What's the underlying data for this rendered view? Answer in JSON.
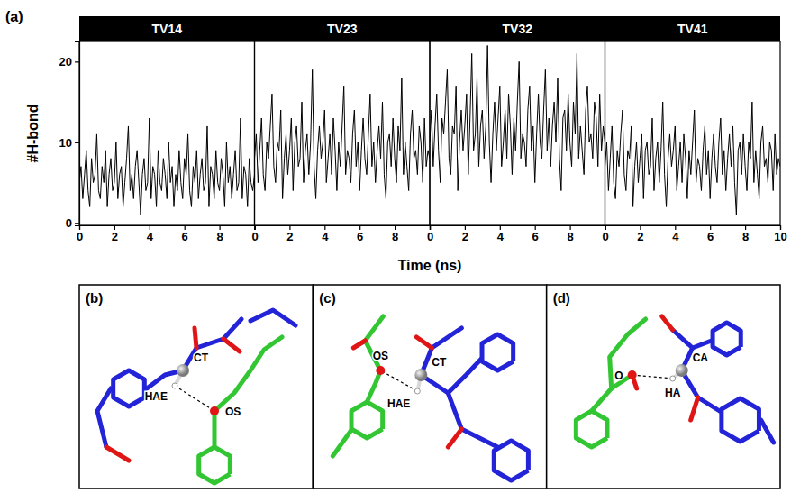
{
  "chart_data": {
    "type": "line",
    "panel_label": "(a)",
    "x_label": "Time (ns)",
    "y_label": "#H-bond",
    "xlim": [
      0,
      10
    ],
    "xticks": [
      0,
      2,
      4,
      6,
      8,
      10
    ],
    "ylim": [
      -0.3,
      22.5
    ],
    "yticks": [
      0,
      10,
      20
    ],
    "x": [
      0,
      0.1,
      0.2,
      0.3,
      0.4,
      0.5,
      0.6,
      0.7,
      0.8,
      0.9,
      1,
      1.1,
      1.2,
      1.3,
      1.4,
      1.5,
      1.6,
      1.7,
      1.8,
      1.9,
      2,
      2.1,
      2.2,
      2.3,
      2.4,
      2.5,
      2.6,
      2.7,
      2.8,
      2.9,
      3,
      3.1,
      3.2,
      3.3,
      3.4,
      3.5,
      3.6,
      3.7,
      3.8,
      3.9,
      4,
      4.1,
      4.2,
      4.3,
      4.4,
      4.5,
      4.6,
      4.7,
      4.8,
      4.9,
      5,
      5.1,
      5.2,
      5.3,
      5.4,
      5.5,
      5.6,
      5.7,
      5.8,
      5.9,
      6,
      6.1,
      6.2,
      6.3,
      6.4,
      6.5,
      6.6,
      6.7,
      6.8,
      6.9,
      7,
      7.1,
      7.2,
      7.3,
      7.4,
      7.5,
      7.6,
      7.7,
      7.8,
      7.9,
      8,
      8.1,
      8.2,
      8.3,
      8.4,
      8.5,
      8.6,
      8.7,
      8.8,
      8.9,
      9,
      9.1,
      9.2,
      9.3,
      9.4,
      9.5,
      9.6,
      9.7,
      9.8,
      9.9,
      10
    ],
    "series": [
      {
        "name": "TV14",
        "color": "#000000",
        "values": [
          5,
          7,
          3,
          6,
          9,
          4,
          2,
          8,
          5,
          6,
          11,
          4,
          3,
          7,
          5,
          9,
          2,
          6,
          8,
          4,
          5,
          10,
          3,
          6,
          7,
          2,
          5,
          8,
          12,
          4,
          6,
          3,
          7,
          9,
          5,
          1,
          6,
          8,
          4,
          5,
          13,
          3,
          7,
          6,
          2,
          9,
          5,
          4,
          8,
          6,
          3,
          10,
          5,
          7,
          2,
          6,
          4,
          9,
          5,
          3,
          8,
          6,
          11,
          4,
          2,
          7,
          5,
          9,
          3,
          6,
          8,
          4,
          5,
          12,
          2,
          7,
          6,
          3,
          9,
          5,
          4,
          8,
          6,
          2,
          10,
          5,
          7,
          3,
          6,
          9,
          4,
          5,
          13,
          3,
          7,
          6,
          2,
          8,
          5,
          4,
          6
        ]
      },
      {
        "name": "TV23",
        "color": "#000000",
        "values": [
          8,
          11,
          5,
          9,
          13,
          6,
          4,
          10,
          8,
          12,
          16,
          7,
          5,
          10,
          9,
          14,
          3,
          8,
          11,
          6,
          9,
          13,
          4,
          10,
          12,
          7,
          8,
          15,
          5,
          9,
          11,
          6,
          10,
          19,
          7,
          3,
          9,
          12,
          8,
          10,
          14,
          5,
          8,
          11,
          6,
          13,
          9,
          4,
          10,
          7,
          12,
          17,
          6,
          9,
          8,
          5,
          11,
          14,
          7,
          10,
          4,
          9,
          13,
          8,
          6,
          11,
          16,
          7,
          10,
          5,
          9,
          12,
          8,
          15,
          6,
          3,
          10,
          11,
          7,
          13,
          8,
          5,
          12,
          9,
          18,
          6,
          10,
          7,
          4,
          11,
          14,
          8,
          9,
          6,
          12,
          10,
          5,
          13,
          7,
          9,
          8
        ]
      },
      {
        "name": "TV32",
        "color": "#000000",
        "values": [
          10,
          14,
          7,
          12,
          16,
          9,
          5,
          13,
          11,
          15,
          19,
          8,
          6,
          12,
          11,
          17,
          4,
          10,
          14,
          9,
          12,
          16,
          6,
          13,
          21,
          9,
          11,
          18,
          7,
          12,
          14,
          8,
          12,
          22,
          10,
          5,
          11,
          15,
          9,
          13,
          17,
          7,
          10,
          14,
          8,
          16,
          12,
          6,
          13,
          9,
          15,
          20,
          8,
          11,
          10,
          7,
          14,
          17,
          9,
          12,
          5,
          11,
          16,
          10,
          8,
          14,
          19,
          9,
          13,
          7,
          12,
          15,
          10,
          18,
          8,
          4,
          13,
          14,
          9,
          16,
          10,
          7,
          15,
          11,
          21,
          8,
          12,
          9,
          6,
          14,
          17,
          10,
          11,
          8,
          15,
          13,
          7,
          16,
          9,
          12,
          10
        ]
      },
      {
        "name": "TV41",
        "color": "#000000",
        "values": [
          7,
          10,
          4,
          8,
          12,
          5,
          3,
          9,
          7,
          11,
          14,
          6,
          4,
          9,
          8,
          12,
          2,
          7,
          10,
          5,
          8,
          11,
          3,
          9,
          10,
          6,
          7,
          13,
          4,
          8,
          10,
          5,
          9,
          15,
          6,
          2,
          8,
          11,
          7,
          9,
          12,
          4,
          7,
          10,
          5,
          11,
          8,
          3,
          9,
          6,
          10,
          14,
          5,
          8,
          7,
          4,
          9,
          12,
          6,
          9,
          3,
          8,
          11,
          7,
          5,
          10,
          13,
          6,
          9,
          4,
          8,
          11,
          7,
          12,
          5,
          1,
          9,
          10,
          6,
          11,
          7,
          4,
          10,
          8,
          15,
          5,
          9,
          6,
          3,
          10,
          12,
          7,
          8,
          5,
          10,
          9,
          4,
          11,
          6,
          8,
          7
        ]
      }
    ]
  },
  "structures": [
    {
      "label": "(b)",
      "atoms": [
        "CT",
        "HAE",
        "OS"
      ]
    },
    {
      "label": "(c)",
      "atoms": [
        "CT",
        "HAE",
        "OS"
      ]
    },
    {
      "label": "(d)",
      "atoms": [
        "CA",
        "HA",
        "O"
      ]
    }
  ]
}
